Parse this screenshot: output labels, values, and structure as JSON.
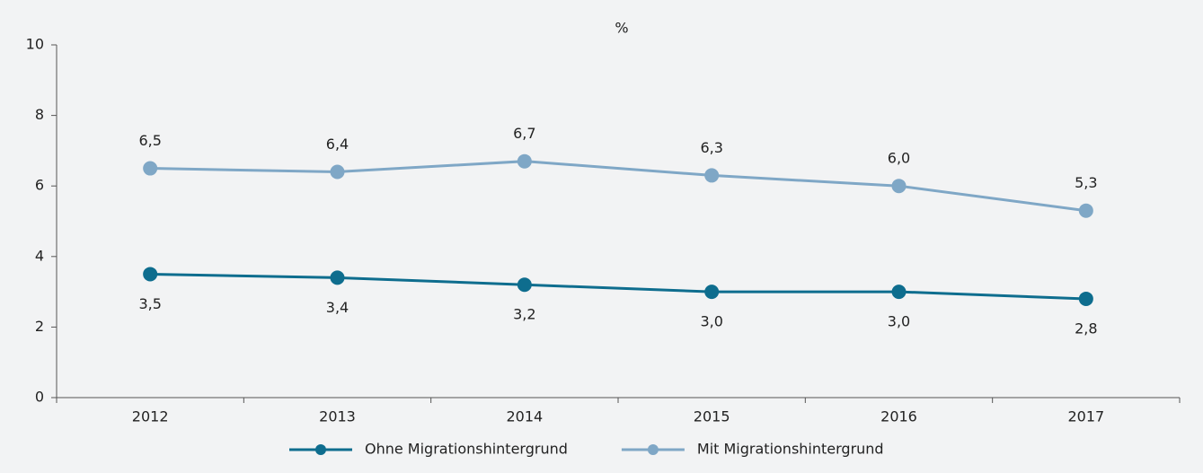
{
  "chart_data": {
    "type": "line",
    "ylabel": "%",
    "categories": [
      "2012",
      "2013",
      "2014",
      "2015",
      "2016",
      "2017"
    ],
    "series": [
      {
        "name": "Ohne Migrationshintergrund",
        "color": "#0e6d8e",
        "values": [
          3.5,
          3.4,
          3.2,
          3.0,
          3.0,
          2.8
        ],
        "value_labels": [
          "3,5",
          "3,4",
          "3,2",
          "3,0",
          "3,0",
          "2,8"
        ],
        "label_position": "below"
      },
      {
        "name": "Mit Migrationshintergrund",
        "color": "#7fa7c6",
        "values": [
          6.5,
          6.4,
          6.7,
          6.3,
          6.0,
          5.3
        ],
        "value_labels": [
          "6,5",
          "6,4",
          "6,7",
          "6,3",
          "6,0",
          "5,3"
        ],
        "label_position": "above"
      }
    ],
    "ylim": [
      0,
      10
    ],
    "yticks": [
      0,
      2,
      4,
      6,
      8,
      10
    ],
    "grid": false,
    "legend": "bottom"
  }
}
